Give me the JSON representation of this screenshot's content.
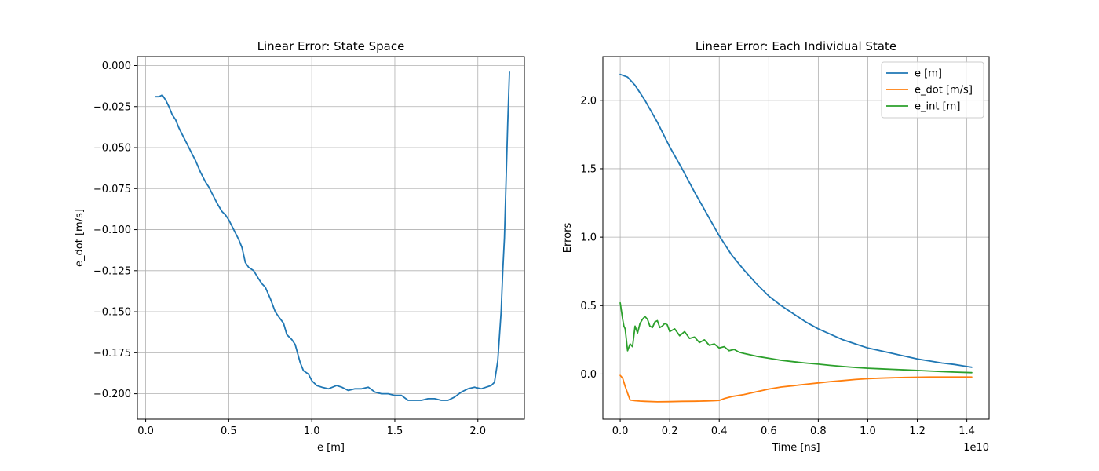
{
  "chart_data": [
    {
      "type": "line",
      "title": "Linear Error: State Space",
      "xlabel": "e [m]",
      "ylabel": "e_dot [m/s]",
      "xlim": [
        -0.05,
        2.28
      ],
      "ylim": [
        -0.2155,
        0.0055
      ],
      "xticks": [
        0.0,
        0.5,
        1.0,
        1.5,
        2.0
      ],
      "xtick_labels": [
        "0.0",
        "0.5",
        "1.0",
        "1.5",
        "2.0"
      ],
      "yticks": [
        0.0,
        -0.025,
        -0.05,
        -0.075,
        -0.1,
        -0.125,
        -0.15,
        -0.175,
        -0.2
      ],
      "ytick_labels": [
        "0.000",
        "−0.025",
        "−0.050",
        "−0.075",
        "−0.100",
        "−0.125",
        "−0.150",
        "−0.175",
        "−0.200"
      ],
      "grid": true,
      "series": [
        {
          "color": "#1f77b4",
          "x": [
            0.06,
            0.08,
            0.1,
            0.12,
            0.14,
            0.16,
            0.18,
            0.2,
            0.22,
            0.25,
            0.28,
            0.3,
            0.33,
            0.36,
            0.38,
            0.4,
            0.43,
            0.46,
            0.48,
            0.5,
            0.53,
            0.56,
            0.58,
            0.6,
            0.62,
            0.65,
            0.68,
            0.7,
            0.72,
            0.75,
            0.78,
            0.8,
            0.83,
            0.85,
            0.88,
            0.9,
            0.93,
            0.95,
            0.98,
            1.0,
            1.03,
            1.06,
            1.1,
            1.15,
            1.18,
            1.22,
            1.26,
            1.3,
            1.34,
            1.38,
            1.42,
            1.46,
            1.5,
            1.54,
            1.58,
            1.62,
            1.66,
            1.7,
            1.74,
            1.78,
            1.82,
            1.86,
            1.9,
            1.94,
            1.98,
            2.02,
            2.05,
            2.08,
            2.1,
            2.12,
            2.14,
            2.15,
            2.16,
            2.17,
            2.18,
            2.19
          ],
          "y": [
            -0.019,
            -0.019,
            -0.018,
            -0.021,
            -0.025,
            -0.03,
            -0.033,
            -0.038,
            -0.042,
            -0.048,
            -0.054,
            -0.058,
            -0.065,
            -0.071,
            -0.074,
            -0.078,
            -0.084,
            -0.089,
            -0.091,
            -0.094,
            -0.1,
            -0.106,
            -0.111,
            -0.12,
            -0.123,
            -0.125,
            -0.13,
            -0.133,
            -0.135,
            -0.142,
            -0.15,
            -0.153,
            -0.157,
            -0.164,
            -0.167,
            -0.17,
            -0.181,
            -0.186,
            -0.188,
            -0.192,
            -0.195,
            -0.196,
            -0.197,
            -0.195,
            -0.196,
            -0.198,
            -0.197,
            -0.197,
            -0.196,
            -0.199,
            -0.2,
            -0.2,
            -0.201,
            -0.201,
            -0.204,
            -0.204,
            -0.204,
            -0.203,
            -0.203,
            -0.204,
            -0.204,
            -0.202,
            -0.199,
            -0.197,
            -0.196,
            -0.197,
            -0.196,
            -0.195,
            -0.193,
            -0.18,
            -0.15,
            -0.125,
            -0.105,
            -0.07,
            -0.035,
            -0.004
          ]
        }
      ]
    },
    {
      "type": "line",
      "title": "Linear Error: Each Individual State",
      "xlabel": "Time [ns]",
      "ylabel": "Errors",
      "x_offset_label": "1e10",
      "xlim": [
        -0.07,
        1.49
      ],
      "ylim": [
        -0.33,
        2.32
      ],
      "xticks": [
        0.0,
        0.2,
        0.4,
        0.6,
        0.8,
        1.0,
        1.2,
        1.4
      ],
      "xtick_labels": [
        "0.0",
        "0.2",
        "0.4",
        "0.6",
        "0.8",
        "1.0",
        "1.2",
        "1.4"
      ],
      "yticks": [
        0.0,
        0.5,
        1.0,
        1.5,
        2.0
      ],
      "ytick_labels": [
        "0.0",
        "0.5",
        "1.0",
        "1.5",
        "2.0"
      ],
      "grid": true,
      "legend_position": "top-right",
      "series": [
        {
          "name": "e [m]",
          "color": "#1f77b4",
          "x": [
            0.0,
            0.03,
            0.06,
            0.1,
            0.15,
            0.2,
            0.25,
            0.3,
            0.35,
            0.4,
            0.45,
            0.5,
            0.55,
            0.6,
            0.65,
            0.7,
            0.75,
            0.8,
            0.85,
            0.9,
            0.95,
            1.0,
            1.05,
            1.1,
            1.15,
            1.2,
            1.25,
            1.3,
            1.35,
            1.4,
            1.42
          ],
          "y": [
            2.19,
            2.17,
            2.11,
            2.0,
            1.84,
            1.66,
            1.5,
            1.33,
            1.17,
            1.01,
            0.87,
            0.76,
            0.66,
            0.57,
            0.5,
            0.44,
            0.38,
            0.33,
            0.29,
            0.25,
            0.22,
            0.19,
            0.17,
            0.15,
            0.13,
            0.11,
            0.095,
            0.08,
            0.07,
            0.055,
            0.05
          ]
        },
        {
          "name": "e_dot [m/s]",
          "color": "#ff7f0e",
          "x": [
            0.0,
            0.01,
            0.02,
            0.03,
            0.04,
            0.06,
            0.08,
            0.1,
            0.15,
            0.2,
            0.25,
            0.3,
            0.35,
            0.38,
            0.4,
            0.42,
            0.45,
            0.5,
            0.55,
            0.6,
            0.65,
            0.7,
            0.75,
            0.8,
            0.85,
            0.9,
            0.95,
            1.0,
            1.05,
            1.1,
            1.15,
            1.2,
            1.25,
            1.3,
            1.35,
            1.4,
            1.42
          ],
          "y": [
            -0.01,
            -0.03,
            -0.09,
            -0.14,
            -0.19,
            -0.195,
            -0.198,
            -0.2,
            -0.203,
            -0.202,
            -0.2,
            -0.199,
            -0.197,
            -0.195,
            -0.193,
            -0.18,
            -0.165,
            -0.15,
            -0.13,
            -0.11,
            -0.095,
            -0.085,
            -0.075,
            -0.065,
            -0.055,
            -0.048,
            -0.04,
            -0.034,
            -0.03,
            -0.027,
            -0.025,
            -0.023,
            -0.022,
            -0.022,
            -0.022,
            -0.022,
            -0.022
          ]
        },
        {
          "name": "e_int [m]",
          "color": "#2ca02c",
          "x": [
            0.0,
            0.01,
            0.015,
            0.02,
            0.03,
            0.04,
            0.05,
            0.06,
            0.07,
            0.08,
            0.09,
            0.1,
            0.11,
            0.12,
            0.13,
            0.14,
            0.15,
            0.16,
            0.17,
            0.18,
            0.19,
            0.2,
            0.22,
            0.24,
            0.26,
            0.28,
            0.3,
            0.32,
            0.34,
            0.36,
            0.38,
            0.4,
            0.42,
            0.44,
            0.46,
            0.48,
            0.5,
            0.55,
            0.6,
            0.65,
            0.7,
            0.75,
            0.8,
            0.85,
            0.9,
            0.95,
            1.0,
            1.05,
            1.1,
            1.15,
            1.2,
            1.25,
            1.3,
            1.35,
            1.42
          ],
          "y": [
            0.52,
            0.4,
            0.35,
            0.33,
            0.17,
            0.22,
            0.2,
            0.35,
            0.3,
            0.37,
            0.4,
            0.42,
            0.4,
            0.35,
            0.34,
            0.38,
            0.39,
            0.34,
            0.35,
            0.37,
            0.36,
            0.31,
            0.33,
            0.28,
            0.31,
            0.26,
            0.27,
            0.23,
            0.25,
            0.21,
            0.22,
            0.19,
            0.2,
            0.17,
            0.18,
            0.16,
            0.15,
            0.13,
            0.115,
            0.1,
            0.09,
            0.08,
            0.072,
            0.063,
            0.055,
            0.048,
            0.042,
            0.038,
            0.034,
            0.03,
            0.026,
            0.022,
            0.018,
            0.014,
            0.01
          ]
        }
      ]
    }
  ]
}
